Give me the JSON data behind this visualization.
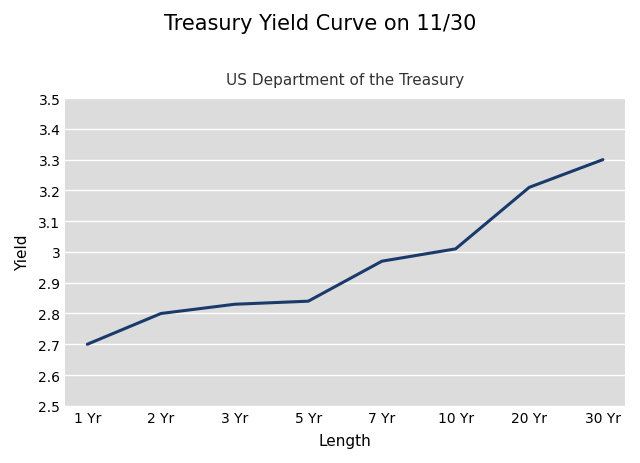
{
  "title": "Treasury Yield Curve on 11/30",
  "subtitle": "US Department of the Treasury",
  "xlabel": "Length",
  "ylabel": "Yield",
  "x_labels": [
    "1 Yr",
    "2 Yr",
    "3 Yr",
    "5 Yr",
    "7 Yr",
    "10 Yr",
    "20 Yr",
    "30 Yr"
  ],
  "y_values": [
    2.7,
    2.8,
    2.83,
    2.84,
    2.97,
    3.01,
    3.21,
    3.3
  ],
  "ylim": [
    2.5,
    3.5
  ],
  "yticks": [
    2.5,
    2.6,
    2.7,
    2.8,
    2.9,
    3.0,
    3.1,
    3.2,
    3.3,
    3.4,
    3.5
  ],
  "line_color": "#1a3a6b",
  "line_width": 2.2,
  "plot_bg_color": "#dcdcdc",
  "fig_bg_color": "#ffffff",
  "title_fontsize": 15,
  "subtitle_fontsize": 11,
  "axis_label_fontsize": 11,
  "tick_fontsize": 10,
  "grid_color": "#ffffff",
  "grid_linewidth": 1.0
}
